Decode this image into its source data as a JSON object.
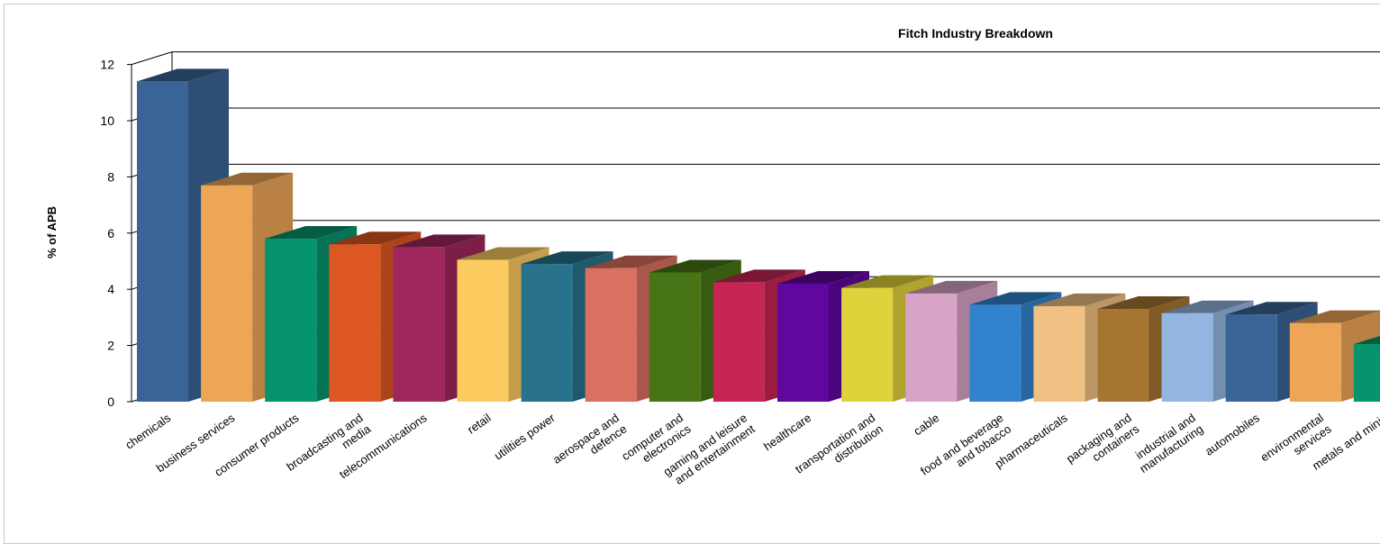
{
  "chart_data": {
    "type": "bar",
    "title": "Fitch Industry Breakdown",
    "xlabel": "",
    "ylabel": "% of APB",
    "ylim": [
      0,
      12
    ],
    "yticks": [
      "0",
      "2",
      "4",
      "6",
      "8",
      "10",
      "12"
    ],
    "grid": true,
    "categories": [
      "chemicals",
      "business services",
      "consumer products",
      "broadcasting and media",
      "telecommunications",
      "retail",
      "utilities power",
      "aerospace and defence",
      "computer and electronics",
      "gaming and leisure and entertainment",
      "healthcare",
      "transportation and distribution",
      "cable",
      "food and beverage and tobacco",
      "pharmaceuticals",
      "packaging and containers",
      "industrial and manufacturing",
      "automobiles",
      "environmental services",
      "metals and minin"
    ],
    "category_label_lines": [
      [
        "chemicals"
      ],
      [
        "business services"
      ],
      [
        "consumer products"
      ],
      [
        "broadcasting and",
        "media"
      ],
      [
        "telecommunications"
      ],
      [
        "retail"
      ],
      [
        "utilities power"
      ],
      [
        "aerospace and",
        "defence"
      ],
      [
        "computer and",
        "electronics"
      ],
      [
        "gaming and leisure",
        "and entertainment"
      ],
      [
        "healthcare"
      ],
      [
        "transportation and",
        "distribution"
      ],
      [
        "cable"
      ],
      [
        "food and beverage",
        "and tobacco"
      ],
      [
        "pharmaceuticals"
      ],
      [
        "packaging and",
        "containers"
      ],
      [
        "industrial and",
        "manufacturing"
      ],
      [
        "automobiles"
      ],
      [
        "environmental",
        "services"
      ],
      [
        "metals and minin"
      ]
    ],
    "values": [
      11.4,
      7.7,
      5.8,
      5.6,
      5.5,
      5.05,
      4.9,
      4.75,
      4.6,
      4.25,
      4.2,
      4.05,
      3.85,
      3.45,
      3.4,
      3.3,
      3.15,
      3.1,
      2.8,
      2.05
    ],
    "colors": [
      "#3a6496",
      "#eda556",
      "#06946c",
      "#dc5721",
      "#a0275d",
      "#fbcb5f",
      "#28728b",
      "#d97061",
      "#477515",
      "#c52552",
      "#5f079f",
      "#e0d23a",
      "#d7a3c7",
      "#3283cd",
      "#f0c182",
      "#a67532",
      "#93b6e0",
      "#3a6496",
      "#eda556",
      "#06946c"
    ]
  }
}
